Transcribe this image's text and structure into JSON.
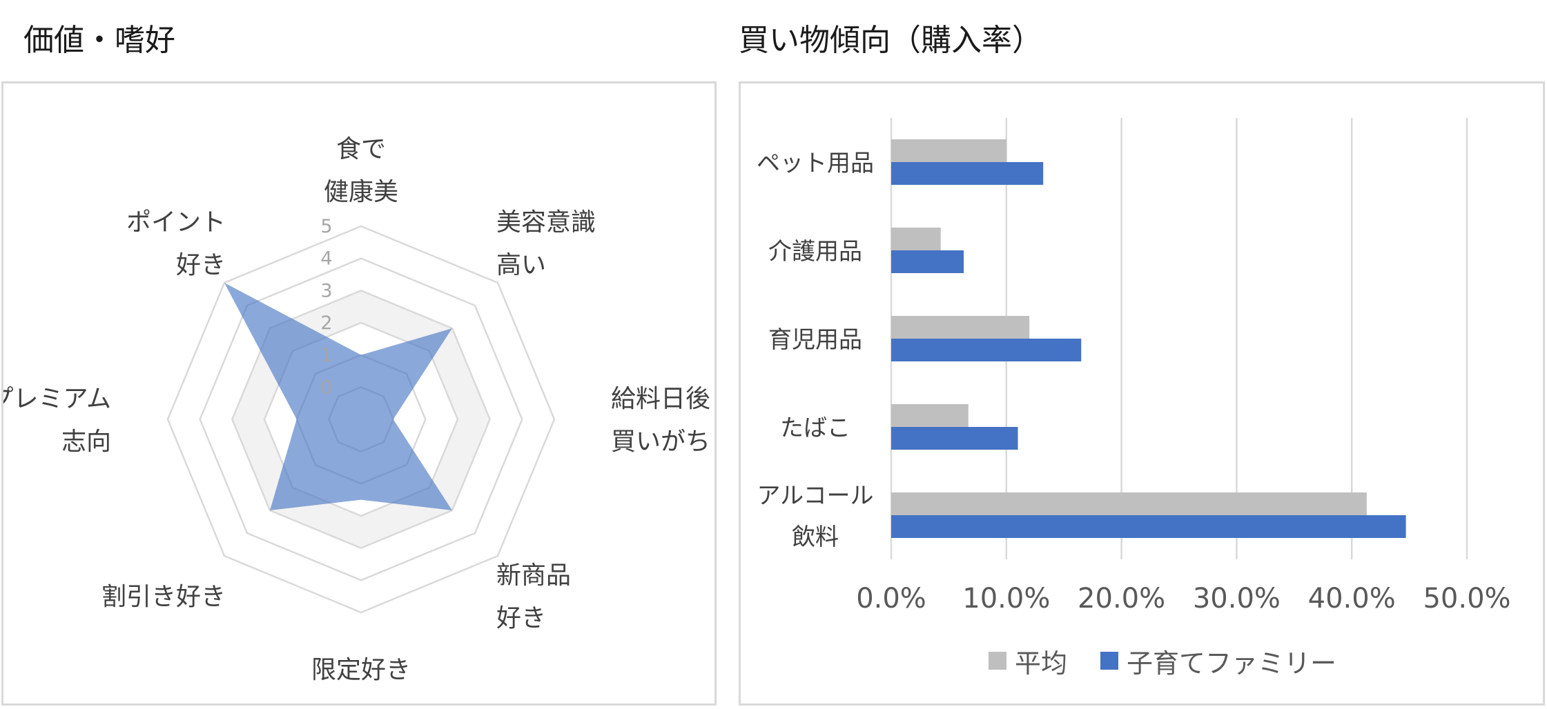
{
  "colors": {
    "average": "#bfbfbf",
    "family": "#4472c4",
    "radar_fill": "#4472c4",
    "grid": "#d9d9d9",
    "band_light": "#f2f2f2"
  },
  "chart_data": [
    {
      "type": "radar",
      "title": "価値・嗜好",
      "axes": [
        [
          "食で",
          "健康美"
        ],
        [
          "美容意識",
          "高い"
        ],
        [
          "給料日後",
          "買いがち"
        ],
        [
          "新商品",
          "好き"
        ],
        [
          "限定好き"
        ],
        [
          "割引き好き"
        ],
        [
          "プレミアム",
          "志向"
        ],
        [
          "ポイント",
          "好き"
        ]
      ],
      "scale_ticks": [
        "0",
        "1",
        "2",
        "3",
        "4",
        "5"
      ],
      "rlim": [
        -1,
        5
      ],
      "series": [
        {
          "values": [
            1.0,
            3.0,
            0.0,
            3.0,
            1.5,
            3.0,
            1.0,
            5.0
          ]
        }
      ]
    },
    {
      "type": "bar",
      "orientation": "horizontal",
      "title": "買い物傾向（購入率）",
      "categories": [
        [
          "ペット用品"
        ],
        [
          "介護用品"
        ],
        [
          "育児用品"
        ],
        [
          "たばこ"
        ],
        [
          "アルコール",
          "飲料"
        ]
      ],
      "series": [
        {
          "name": "平均",
          "values": [
            10.0,
            4.3,
            12.0,
            6.7,
            41.3
          ]
        },
        {
          "name": "子育てファミリー",
          "values": [
            13.2,
            6.3,
            16.5,
            11.0,
            44.7
          ]
        }
      ],
      "xlim": [
        0,
        50
      ],
      "xticks": [
        "0.0%",
        "10.0%",
        "20.0%",
        "30.0%",
        "40.0%",
        "50.0%"
      ],
      "grid": true,
      "legend": "bottom"
    }
  ]
}
